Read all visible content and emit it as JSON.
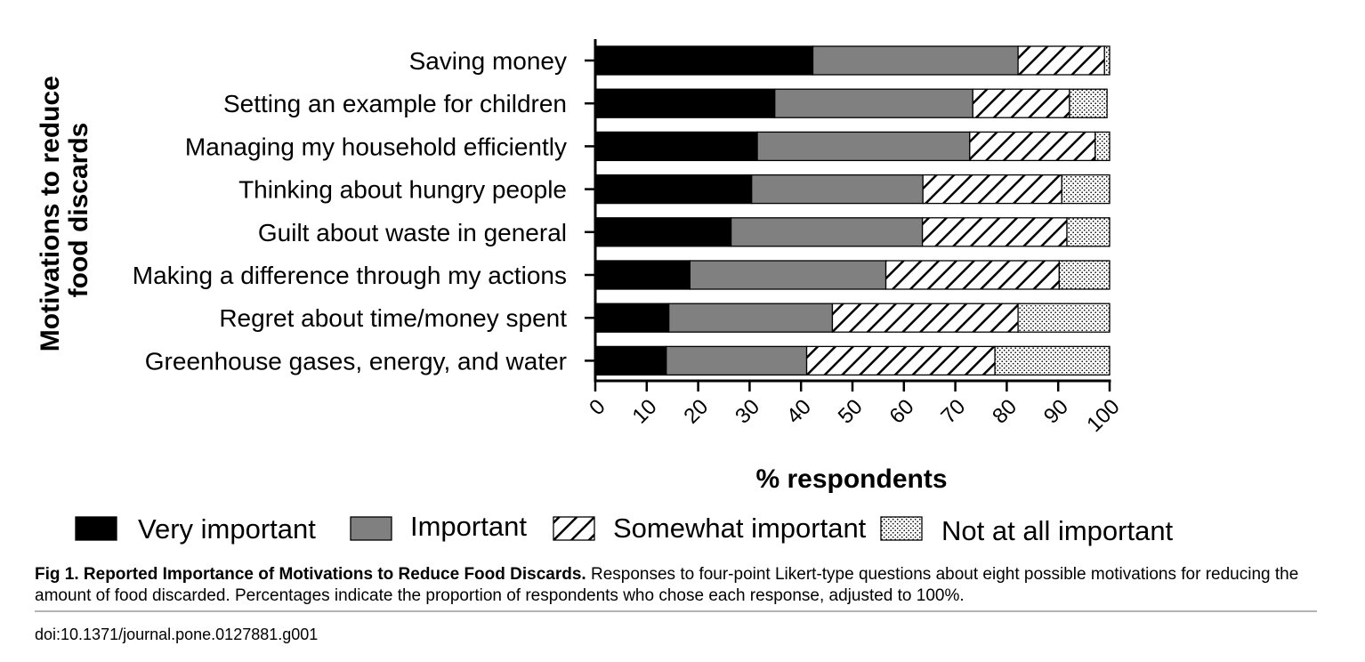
{
  "chart_data": {
    "type": "bar",
    "orientation": "horizontal",
    "stacked": true,
    "categories": [
      "Saving money",
      "Setting an example for children",
      "Managing my household efficiently",
      "Thinking about hungry people",
      "Guilt about waste in general",
      "Making a difference through my actions",
      "Regret about time/money spent",
      "Greenhouse gases, energy, and water"
    ],
    "series": [
      {
        "name": "Very important",
        "fill": "solid",
        "color": "#000000",
        "values": [
          42.3,
          34.9,
          31.5,
          30.4,
          26.4,
          18.4,
          14.3,
          13.8
        ]
      },
      {
        "name": "Important",
        "fill": "solid",
        "color": "#808080",
        "values": [
          39.9,
          38.5,
          41.3,
          33.3,
          37.2,
          38.1,
          31.8,
          27.3
        ]
      },
      {
        "name": "Somewhat important",
        "fill": "diagonal-hatch",
        "color": "#000000",
        "values": [
          16.8,
          18.8,
          24.4,
          27.0,
          28.1,
          33.7,
          36.1,
          36.6
        ]
      },
      {
        "name": "Not at all important",
        "fill": "dotted",
        "color": "#000000",
        "values": [
          1.0,
          7.3,
          2.8,
          9.3,
          8.3,
          9.8,
          17.8,
          22.3
        ]
      }
    ],
    "xlabel": "% respondents",
    "ylabel": "Motivations to reduce food discards",
    "xlim": [
      0,
      100
    ],
    "xticks": [
      0,
      10,
      20,
      30,
      40,
      50,
      60,
      70,
      80,
      90,
      100
    ],
    "grid": false,
    "legend_position": "bottom"
  },
  "caption": {
    "figure_label": "Fig 1.",
    "title": "Reported Importance of Motivations to Reduce Food Discards.",
    "text": "Responses to four-point Likert-type questions about eight possible motivations for reducing the amount of food discarded. Percentages indicate the proportion of respondents who chose each response, adjusted to 100%."
  },
  "doi": "doi:10.1371/journal.pone.0127881.g001"
}
